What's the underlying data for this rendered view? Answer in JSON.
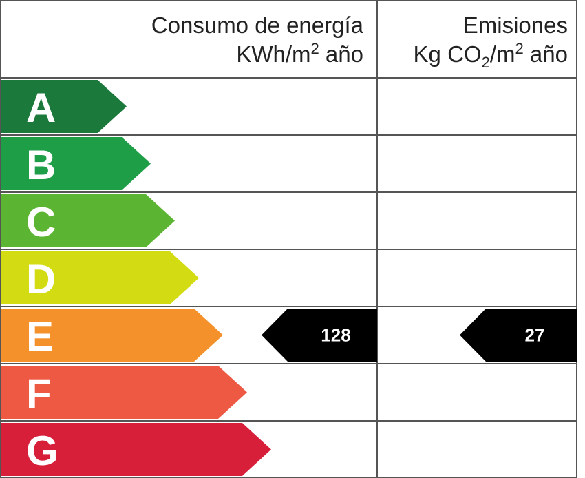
{
  "header": {
    "energy_title": "Consumo de energía",
    "energy_unit": [
      "KWh/m",
      "2",
      " año"
    ],
    "emissions_title": "Emisiones",
    "emissions_unit": [
      "Kg CO",
      "2",
      "/m",
      "2",
      " año"
    ]
  },
  "ratings": [
    {
      "letter": "A",
      "color": "#1b7a3b"
    },
    {
      "letter": "B",
      "color": "#1f9e48"
    },
    {
      "letter": "C",
      "color": "#5cb532"
    },
    {
      "letter": "D",
      "color": "#d3dc12"
    },
    {
      "letter": "E",
      "color": "#f5912b"
    },
    {
      "letter": "F",
      "color": "#ee5944"
    },
    {
      "letter": "G",
      "color": "#d71f3a"
    }
  ],
  "energy": {
    "value": 128,
    "rating": "E"
  },
  "emissions": {
    "value": 27,
    "rating": "E"
  }
}
